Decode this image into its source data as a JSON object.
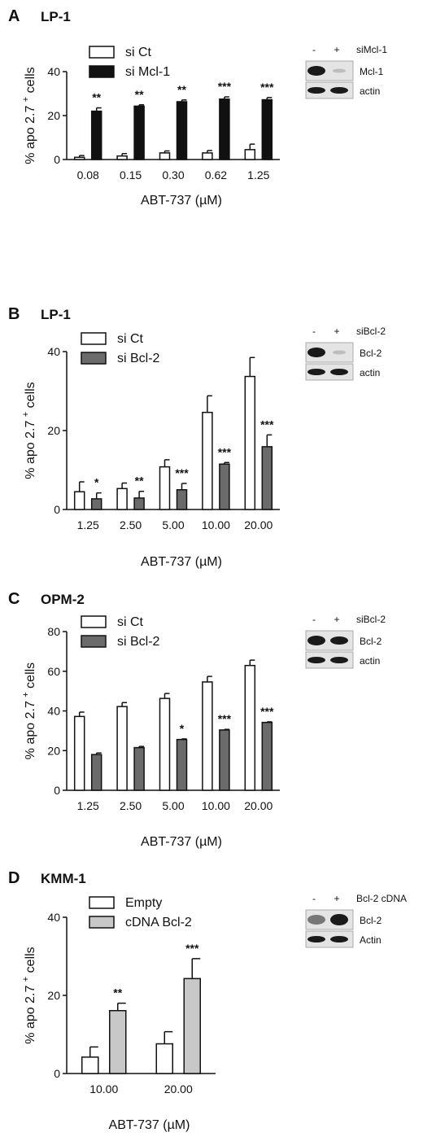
{
  "colors": {
    "white": "#ffffff",
    "black": "#111111",
    "dark_grey": "#6b6b6b",
    "light_grey": "#c8c8c8"
  },
  "chart_data": [
    {
      "type": "bar",
      "panel": "A",
      "title": "LP-1",
      "categories": [
        "0.08",
        "0.15",
        "0.30",
        "0.62",
        "1.25"
      ],
      "xlabel": "ABT-737 (µM)",
      "ylabel": "% apo 2.7",
      "ylabel_sup": "+",
      "ylabel_suffix": "cells",
      "ylim": [
        0,
        40
      ],
      "yticks": [
        0,
        20,
        40
      ],
      "legend_position": "top-left",
      "series": [
        {
          "name": "si Ct",
          "color": "#ffffff",
          "values": [
            1,
            1.6,
            3,
            3,
            4.5
          ],
          "errors": [
            0.8,
            1.1,
            0.9,
            1.1,
            2.5
          ]
        },
        {
          "name": "si Mcl-1",
          "color": "#111111",
          "values": [
            22,
            24.3,
            26.3,
            27.5,
            27.2
          ],
          "errors": [
            1.5,
            0.6,
            0.8,
            1.0,
            1.0
          ]
        }
      ],
      "significance": [
        "**",
        "**",
        "**",
        "***",
        "***"
      ],
      "blot": {
        "signs": [
          "-",
          "+"
        ],
        "condition": "siMcl-1",
        "bands": [
          "Mcl-1",
          "actin"
        ]
      }
    },
    {
      "type": "bar",
      "panel": "B",
      "title": "LP-1",
      "categories": [
        "1.25",
        "2.50",
        "5.00",
        "10.00",
        "20.00"
      ],
      "xlabel": "ABT-737 (µM)",
      "ylabel": "% apo 2.7",
      "ylabel_sup": "+",
      "ylabel_suffix": "cells",
      "ylim": [
        0,
        40
      ],
      "yticks": [
        0,
        20,
        40
      ],
      "legend_position": "top-left",
      "series": [
        {
          "name": "si Ct",
          "color": "#ffffff",
          "values": [
            4.5,
            5.3,
            10.8,
            24.6,
            33.7
          ],
          "errors": [
            2.5,
            1.4,
            1.8,
            4.2,
            4.8
          ]
        },
        {
          "name": "si Bcl-2",
          "color": "#6b6b6b",
          "values": [
            2.7,
            2.9,
            5.0,
            11.5,
            15.9
          ],
          "errors": [
            1.5,
            1.7,
            1.6,
            0.4,
            3.0
          ]
        }
      ],
      "significance": [
        "*",
        "**",
        "***",
        "***",
        "***"
      ],
      "blot": {
        "signs": [
          "-",
          "+"
        ],
        "condition": "siBcl-2",
        "bands": [
          "Bcl-2",
          "actin"
        ]
      }
    },
    {
      "type": "bar",
      "panel": "C",
      "title": "OPM-2",
      "categories": [
        "1.25",
        "2.50",
        "5.00",
        "10.00",
        "20.00"
      ],
      "xlabel": "ABT-737 (µM)",
      "ylabel": "% apo 2.7",
      "ylabel_sup": "+",
      "ylabel_suffix": "cells",
      "ylim": [
        0,
        80
      ],
      "yticks": [
        0,
        20,
        40,
        60,
        80
      ],
      "legend_position": "top-left",
      "series": [
        {
          "name": "si Ct",
          "color": "#ffffff",
          "values": [
            37.2,
            42.2,
            46.3,
            54.6,
            62.9
          ],
          "errors": [
            2.2,
            2.0,
            2.5,
            2.8,
            2.7
          ]
        },
        {
          "name": "si Bcl-2",
          "color": "#6b6b6b",
          "values": [
            18.0,
            21.5,
            25.6,
            30.4,
            34.2
          ],
          "errors": [
            0.8,
            0.6,
            0.3,
            0.3,
            0.3
          ]
        }
      ],
      "significance": [
        "",
        "",
        "*",
        "***",
        "***"
      ],
      "blot": {
        "signs": [
          "-",
          "+"
        ],
        "condition": "siBcl-2",
        "bands": [
          "Bcl-2",
          "actin"
        ]
      }
    },
    {
      "type": "bar",
      "panel": "D",
      "title": "KMM-1",
      "categories": [
        "10.00",
        "20.00"
      ],
      "xlabel": "ABT-737 (µM)",
      "ylabel": "% apo 2.7",
      "ylabel_sup": "+",
      "ylabel_suffix": "cells",
      "ylim": [
        0,
        40
      ],
      "yticks": [
        0,
        20,
        40
      ],
      "legend_position": "top-left",
      "series": [
        {
          "name": "Empty",
          "color": "#ffffff",
          "values": [
            4.2,
            7.6
          ],
          "errors": [
            2.6,
            3.1
          ]
        },
        {
          "name": "cDNA Bcl-2",
          "color": "#c8c8c8",
          "values": [
            16.1,
            24.3
          ],
          "errors": [
            1.9,
            5.1
          ]
        }
      ],
      "significance": [
        "**",
        "***"
      ],
      "blot": {
        "signs": [
          "-",
          "+"
        ],
        "condition": "Bcl-2 cDNA",
        "bands": [
          "Bcl-2",
          "Actin"
        ]
      }
    }
  ]
}
